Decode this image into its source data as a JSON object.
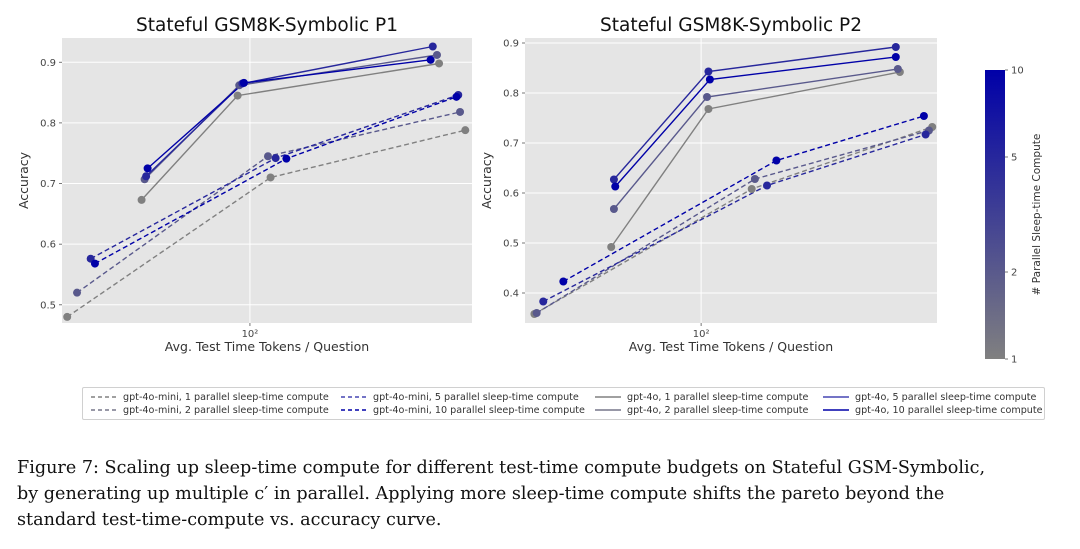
{
  "figure": {
    "caption_lines": [
      "Figure 7: Scaling up sleep-time compute for different test-time compute budgets on Stateful GSM-Symbolic,",
      "by generating up multiple c′ in parallel. Applying more sleep-time compute shifts the pareto beyond the",
      "standard test-time-compute vs. accuracy curve."
    ]
  },
  "colorbar": {
    "label": "# Parallel Sleep-time Compute",
    "ticks": [
      "10",
      "5",
      "2",
      "1"
    ],
    "tick_values": [
      10,
      5,
      2,
      1
    ],
    "color_low": "#808080",
    "color_high": "#0000a8"
  },
  "legend": [
    {
      "label": "gpt-4o-mini, 1 parallel sleep-time compute",
      "dashed": true,
      "color": "#808080"
    },
    {
      "label": "gpt-4o-mini, 2 parallel sleep-time compute",
      "dashed": true,
      "color": "#76768a"
    },
    {
      "label": "gpt-4o-mini, 5 parallel sleep-time compute",
      "dashed": true,
      "color": "#4747b4"
    },
    {
      "label": "gpt-4o-mini, 10 parallel sleep-time compute",
      "dashed": true,
      "color": "#0000a8"
    },
    {
      "label": "gpt-4o, 1 parallel sleep-time compute",
      "dashed": false,
      "color": "#808080"
    },
    {
      "label": "gpt-4o, 2 parallel sleep-time compute",
      "dashed": false,
      "color": "#76768a"
    },
    {
      "label": "gpt-4o, 5 parallel sleep-time compute",
      "dashed": false,
      "color": "#4747b4"
    },
    {
      "label": "gpt-4o, 10 parallel sleep-time compute",
      "dashed": false,
      "color": "#0000a8"
    }
  ],
  "chart_data": [
    {
      "type": "line",
      "title": "Stateful GSM8K-Symbolic P1",
      "xlabel": "Avg. Test Time Tokens / Question",
      "ylabel": "Accuracy",
      "xscale": "log",
      "xlim": [
        28,
        450
      ],
      "ylim": [
        0.47,
        0.94
      ],
      "xticks": [
        100
      ],
      "xtick_labels": [
        "10²"
      ],
      "yticks": [
        0.5,
        0.6,
        0.7,
        0.8,
        0.9
      ],
      "ytick_labels": [
        "0.5",
        "0.6",
        "0.7",
        "0.8",
        "0.9"
      ],
      "grid": true,
      "series": [
        {
          "name": "gpt-4o-mini, 1 parallel sleep-time compute",
          "model": "gpt-4o-mini",
          "parallel": 1,
          "dashed": true,
          "x": [
            29,
            115,
            430
          ],
          "y": [
            0.48,
            0.71,
            0.788
          ]
        },
        {
          "name": "gpt-4o-mini, 2 parallel sleep-time compute",
          "model": "gpt-4o-mini",
          "parallel": 2,
          "dashed": true,
          "x": [
            31,
            113,
            415
          ],
          "y": [
            0.52,
            0.745,
            0.818
          ]
        },
        {
          "name": "gpt-4o-mini, 5 parallel sleep-time compute",
          "model": "gpt-4o-mini",
          "parallel": 5,
          "dashed": true,
          "x": [
            34,
            119,
            410
          ],
          "y": [
            0.576,
            0.742,
            0.846
          ]
        },
        {
          "name": "gpt-4o-mini, 10 parallel sleep-time compute",
          "model": "gpt-4o-mini",
          "parallel": 10,
          "dashed": true,
          "x": [
            35,
            128,
            405
          ],
          "y": [
            0.568,
            0.741,
            0.843
          ]
        },
        {
          "name": "gpt-4o, 1 parallel sleep-time compute",
          "model": "gpt-4o",
          "parallel": 1,
          "dashed": false,
          "x": [
            48,
            92,
            360
          ],
          "y": [
            0.673,
            0.845,
            0.898
          ]
        },
        {
          "name": "gpt-4o, 2 parallel sleep-time compute",
          "model": "gpt-4o",
          "parallel": 2,
          "dashed": false,
          "x": [
            49,
            93,
            355
          ],
          "y": [
            0.707,
            0.862,
            0.912
          ]
        },
        {
          "name": "gpt-4o, 5 parallel sleep-time compute",
          "model": "gpt-4o",
          "parallel": 5,
          "dashed": false,
          "x": [
            49.5,
            95,
            345
          ],
          "y": [
            0.712,
            0.865,
            0.926
          ]
        },
        {
          "name": "gpt-4o, 10 parallel sleep-time compute",
          "model": "gpt-4o",
          "parallel": 10,
          "dashed": false,
          "x": [
            50,
            96,
            340
          ],
          "y": [
            0.725,
            0.866,
            0.904
          ]
        }
      ]
    },
    {
      "type": "line",
      "title": "Stateful GSM8K-Symbolic P2",
      "xlabel": "Avg. Test Time Tokens / Question",
      "ylabel": "Accuracy",
      "xscale": "log",
      "xlim": [
        31,
        480
      ],
      "ylim": [
        0.34,
        0.91
      ],
      "xticks": [
        100
      ],
      "xtick_labels": [
        "10²"
      ],
      "yticks": [
        0.4,
        0.5,
        0.6,
        0.7,
        0.8,
        0.9
      ],
      "ytick_labels": [
        "0.4",
        "0.5",
        "0.6",
        "0.7",
        "0.8",
        "0.9"
      ],
      "grid": true,
      "series": [
        {
          "name": "gpt-4o-mini, 1 parallel sleep-time compute",
          "model": "gpt-4o-mini",
          "parallel": 1,
          "dashed": true,
          "x": [
            33,
            140,
            465
          ],
          "y": [
            0.358,
            0.608,
            0.732
          ]
        },
        {
          "name": "gpt-4o-mini, 2 parallel sleep-time compute",
          "model": "gpt-4o-mini",
          "parallel": 2,
          "dashed": true,
          "x": [
            33.5,
            143,
            455
          ],
          "y": [
            0.36,
            0.628,
            0.725
          ]
        },
        {
          "name": "gpt-4o-mini, 5 parallel sleep-time compute",
          "model": "gpt-4o-mini",
          "parallel": 5,
          "dashed": true,
          "x": [
            35,
            155,
            445
          ],
          "y": [
            0.383,
            0.615,
            0.717
          ]
        },
        {
          "name": "gpt-4o-mini, 10 parallel sleep-time compute",
          "model": "gpt-4o-mini",
          "parallel": 10,
          "dashed": true,
          "x": [
            40,
            165,
            440
          ],
          "y": [
            0.423,
            0.665,
            0.754
          ]
        },
        {
          "name": "gpt-4o, 1 parallel sleep-time compute",
          "model": "gpt-4o",
          "parallel": 1,
          "dashed": false,
          "x": [
            55,
            105,
            375
          ],
          "y": [
            0.492,
            0.768,
            0.842
          ]
        },
        {
          "name": "gpt-4o, 2 parallel sleep-time compute",
          "model": "gpt-4o",
          "parallel": 2,
          "dashed": false,
          "x": [
            56,
            104,
            370
          ],
          "y": [
            0.568,
            0.792,
            0.848
          ]
        },
        {
          "name": "gpt-4o, 5 parallel sleep-time compute",
          "model": "gpt-4o",
          "parallel": 5,
          "dashed": false,
          "x": [
            56,
            105,
            365
          ],
          "y": [
            0.627,
            0.843,
            0.892
          ]
        },
        {
          "name": "gpt-4o, 10 parallel sleep-time compute",
          "model": "gpt-4o",
          "parallel": 10,
          "dashed": false,
          "x": [
            56.5,
            106,
            365
          ],
          "y": [
            0.613,
            0.827,
            0.872
          ]
        }
      ]
    }
  ]
}
